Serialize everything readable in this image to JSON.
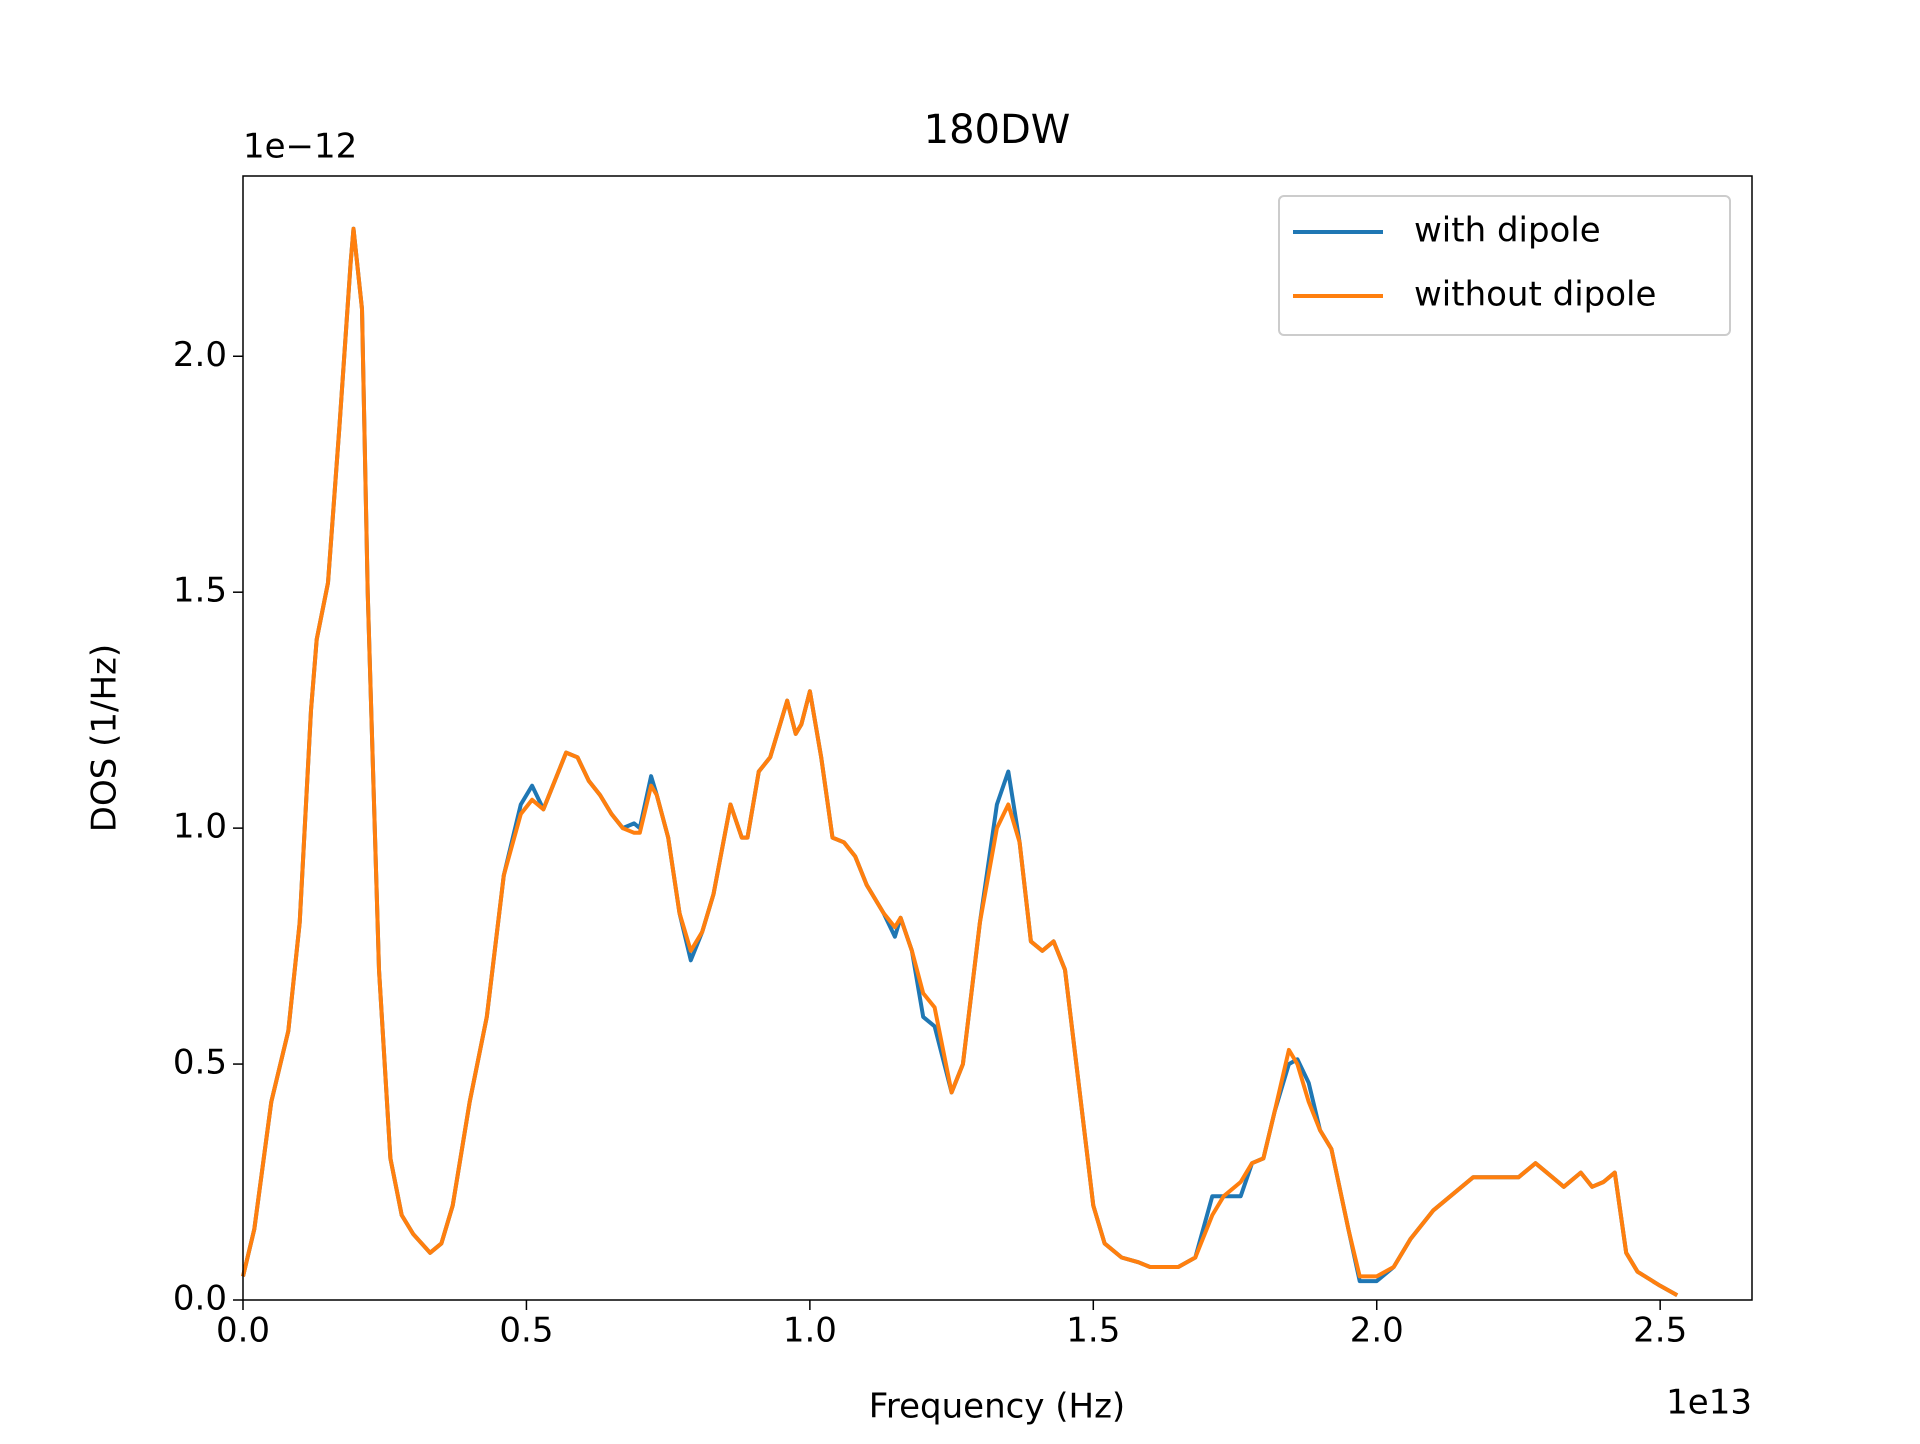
{
  "chart_data": {
    "type": "line",
    "title": "180DW",
    "x_label": "Frequency (Hz)",
    "y_label": "DOS (1/Hz)",
    "x_offset_label": "1e13",
    "y_offset_label": "1e−12",
    "xlim": [
      0,
      2.662
    ],
    "ylim": [
      0,
      2.382
    ],
    "xticks": [
      {
        "value": 0,
        "label": "0.0"
      },
      0.5,
      {
        "value": 1,
        "label": "1.0"
      },
      1.5,
      {
        "value": 2,
        "label": "2.0"
      },
      2.5
    ],
    "yticks": [
      {
        "value": 0,
        "label": "0.0"
      },
      0.5,
      {
        "value": 1,
        "label": "1.0"
      },
      1.5,
      {
        "value": 2,
        "label": "2.0"
      }
    ],
    "legend": "upper right",
    "x": [
      0,
      0.02,
      0.05,
      0.08,
      0.1,
      0.12,
      0.13,
      0.15,
      0.17,
      0.19,
      0.195,
      0.21,
      0.22,
      0.24,
      0.26,
      0.28,
      0.3,
      0.33,
      0.35,
      0.37,
      0.4,
      0.43,
      0.46,
      0.49,
      0.51,
      0.53,
      0.55,
      0.57,
      0.59,
      0.61,
      0.63,
      0.65,
      0.67,
      0.69,
      0.7,
      0.72,
      0.73,
      0.75,
      0.77,
      0.79,
      0.81,
      0.83,
      0.86,
      0.88,
      0.89,
      0.91,
      0.93,
      0.96,
      0.975,
      0.985,
      1.0,
      1.02,
      1.04,
      1.06,
      1.08,
      1.1,
      1.13,
      1.15,
      1.16,
      1.18,
      1.2,
      1.22,
      1.25,
      1.27,
      1.3,
      1.33,
      1.35,
      1.37,
      1.39,
      1.41,
      1.43,
      1.45,
      1.48,
      1.5,
      1.52,
      1.55,
      1.58,
      1.6,
      1.65,
      1.68,
      1.71,
      1.73,
      1.76,
      1.78,
      1.8,
      1.82,
      1.845,
      1.86,
      1.88,
      1.9,
      1.92,
      1.95,
      1.97,
      2.0,
      2.03,
      2.06,
      2.1,
      2.13,
      2.17,
      2.2,
      2.23,
      2.25,
      2.28,
      2.31,
      2.33,
      2.36,
      2.38,
      2.4,
      2.42,
      2.44,
      2.46,
      2.5,
      2.53
    ],
    "series": [
      {
        "name": "with dipole",
        "color": "#1f77b4",
        "values": [
          0.05,
          0.15,
          0.42,
          0.57,
          0.8,
          1.25,
          1.4,
          1.52,
          1.85,
          2.2,
          2.27,
          2.1,
          1.5,
          0.7,
          0.3,
          0.18,
          0.14,
          0.1,
          0.12,
          0.2,
          0.42,
          0.6,
          0.9,
          1.05,
          1.09,
          1.04,
          1.1,
          1.16,
          1.15,
          1.1,
          1.07,
          1.03,
          1.0,
          1.01,
          1.0,
          1.11,
          1.07,
          0.98,
          0.82,
          0.72,
          0.78,
          0.86,
          1.05,
          0.98,
          0.98,
          1.12,
          1.15,
          1.27,
          1.2,
          1.22,
          1.29,
          1.15,
          0.98,
          0.97,
          0.94,
          0.88,
          0.82,
          0.77,
          0.81,
          0.74,
          0.6,
          0.58,
          0.44,
          0.5,
          0.8,
          1.05,
          1.12,
          0.97,
          0.76,
          0.74,
          0.76,
          0.7,
          0.4,
          0.2,
          0.12,
          0.09,
          0.08,
          0.07,
          0.07,
          0.09,
          0.22,
          0.22,
          0.22,
          0.29,
          0.3,
          0.4,
          0.5,
          0.51,
          0.46,
          0.36,
          0.32,
          0.15,
          0.04,
          0.04,
          0.07,
          0.13,
          0.19,
          0.22,
          0.26,
          0.26,
          0.26,
          0.26,
          0.29,
          0.26,
          0.24,
          0.27,
          0.24,
          0.25,
          0.27,
          0.1,
          0.06,
          0.03,
          0.01
        ]
      },
      {
        "name": "without dipole",
        "color": "#ff7f0e",
        "values": [
          0.05,
          0.15,
          0.42,
          0.57,
          0.8,
          1.25,
          1.4,
          1.52,
          1.85,
          2.2,
          2.27,
          2.1,
          1.5,
          0.7,
          0.3,
          0.18,
          0.14,
          0.1,
          0.12,
          0.2,
          0.42,
          0.6,
          0.9,
          1.03,
          1.06,
          1.04,
          1.1,
          1.16,
          1.15,
          1.1,
          1.07,
          1.03,
          1.0,
          0.99,
          0.99,
          1.09,
          1.07,
          0.98,
          0.82,
          0.74,
          0.78,
          0.86,
          1.05,
          0.98,
          0.98,
          1.12,
          1.15,
          1.27,
          1.2,
          1.22,
          1.29,
          1.15,
          0.98,
          0.97,
          0.94,
          0.88,
          0.82,
          0.79,
          0.81,
          0.74,
          0.65,
          0.62,
          0.44,
          0.5,
          0.8,
          1.0,
          1.05,
          0.97,
          0.76,
          0.74,
          0.76,
          0.7,
          0.4,
          0.2,
          0.12,
          0.09,
          0.08,
          0.07,
          0.07,
          0.09,
          0.18,
          0.22,
          0.25,
          0.29,
          0.3,
          0.4,
          0.53,
          0.5,
          0.42,
          0.36,
          0.32,
          0.15,
          0.05,
          0.05,
          0.07,
          0.13,
          0.19,
          0.22,
          0.26,
          0.26,
          0.26,
          0.26,
          0.29,
          0.26,
          0.24,
          0.27,
          0.24,
          0.25,
          0.27,
          0.1,
          0.06,
          0.03,
          0.01
        ]
      }
    ]
  }
}
